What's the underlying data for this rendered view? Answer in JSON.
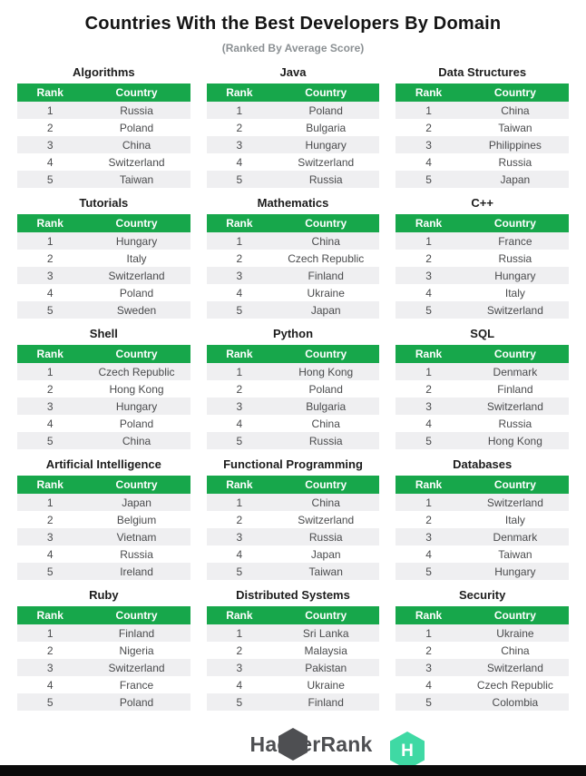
{
  "title": "Countries With the Best Developers By Domain",
  "subtitle": "(Ranked By Average Score)",
  "columns": {
    "rank": "Rank",
    "country": "Country"
  },
  "chart_data": [
    {
      "type": "table",
      "title": "Algorithms",
      "columns": [
        "Rank",
        "Country"
      ],
      "rows": [
        [
          "1",
          "Russia"
        ],
        [
          "2",
          "Poland"
        ],
        [
          "3",
          "China"
        ],
        [
          "4",
          "Switzerland"
        ],
        [
          "5",
          "Taiwan"
        ]
      ]
    },
    {
      "type": "table",
      "title": "Java",
      "columns": [
        "Rank",
        "Country"
      ],
      "rows": [
        [
          "1",
          "Poland"
        ],
        [
          "2",
          "Bulgaria"
        ],
        [
          "3",
          "Hungary"
        ],
        [
          "4",
          "Switzerland"
        ],
        [
          "5",
          "Russia"
        ]
      ]
    },
    {
      "type": "table",
      "title": "Data Structures",
      "columns": [
        "Rank",
        "Country"
      ],
      "rows": [
        [
          "1",
          "China"
        ],
        [
          "2",
          "Taiwan"
        ],
        [
          "3",
          "Philippines"
        ],
        [
          "4",
          "Russia"
        ],
        [
          "5",
          "Japan"
        ]
      ]
    },
    {
      "type": "table",
      "title": "Tutorials",
      "columns": [
        "Rank",
        "Country"
      ],
      "rows": [
        [
          "1",
          "Hungary"
        ],
        [
          "2",
          "Italy"
        ],
        [
          "3",
          "Switzerland"
        ],
        [
          "4",
          "Poland"
        ],
        [
          "5",
          "Sweden"
        ]
      ]
    },
    {
      "type": "table",
      "title": "Mathematics",
      "columns": [
        "Rank",
        "Country"
      ],
      "rows": [
        [
          "1",
          "China"
        ],
        [
          "2",
          "Czech Republic"
        ],
        [
          "3",
          "Finland"
        ],
        [
          "4",
          "Ukraine"
        ],
        [
          "5",
          "Japan"
        ]
      ]
    },
    {
      "type": "table",
      "title": "C++",
      "columns": [
        "Rank",
        "Country"
      ],
      "rows": [
        [
          "1",
          "France"
        ],
        [
          "2",
          "Russia"
        ],
        [
          "3",
          "Hungary"
        ],
        [
          "4",
          "Italy"
        ],
        [
          "5",
          "Switzerland"
        ]
      ]
    },
    {
      "type": "table",
      "title": "Shell",
      "columns": [
        "Rank",
        "Country"
      ],
      "rows": [
        [
          "1",
          "Czech Republic"
        ],
        [
          "2",
          "Hong Kong"
        ],
        [
          "3",
          "Hungary"
        ],
        [
          "4",
          "Poland"
        ],
        [
          "5",
          "China"
        ]
      ]
    },
    {
      "type": "table",
      "title": "Python",
      "columns": [
        "Rank",
        "Country"
      ],
      "rows": [
        [
          "1",
          "Hong Kong"
        ],
        [
          "2",
          "Poland"
        ],
        [
          "3",
          "Bulgaria"
        ],
        [
          "4",
          "China"
        ],
        [
          "5",
          "Russia"
        ]
      ]
    },
    {
      "type": "table",
      "title": "SQL",
      "columns": [
        "Rank",
        "Country"
      ],
      "rows": [
        [
          "1",
          "Denmark"
        ],
        [
          "2",
          "Finland"
        ],
        [
          "3",
          "Switzerland"
        ],
        [
          "4",
          "Russia"
        ],
        [
          "5",
          "Hong Kong"
        ]
      ]
    },
    {
      "type": "table",
      "title": "Artificial Intelligence",
      "columns": [
        "Rank",
        "Country"
      ],
      "rows": [
        [
          "1",
          "Japan"
        ],
        [
          "2",
          "Belgium"
        ],
        [
          "3",
          "Vietnam"
        ],
        [
          "4",
          "Russia"
        ],
        [
          "5",
          "Ireland"
        ]
      ]
    },
    {
      "type": "table",
      "title": "Functional Programming",
      "columns": [
        "Rank",
        "Country"
      ],
      "rows": [
        [
          "1",
          "China"
        ],
        [
          "2",
          "Switzerland"
        ],
        [
          "3",
          "Russia"
        ],
        [
          "4",
          "Japan"
        ],
        [
          "5",
          "Taiwan"
        ]
      ]
    },
    {
      "type": "table",
      "title": "Databases",
      "columns": [
        "Rank",
        "Country"
      ],
      "rows": [
        [
          "1",
          "Switzerland"
        ],
        [
          "2",
          "Italy"
        ],
        [
          "3",
          "Denmark"
        ],
        [
          "4",
          "Taiwan"
        ],
        [
          "5",
          "Hungary"
        ]
      ]
    },
    {
      "type": "table",
      "title": "Ruby",
      "columns": [
        "Rank",
        "Country"
      ],
      "rows": [
        [
          "1",
          "Finland"
        ],
        [
          "2",
          "Nigeria"
        ],
        [
          "3",
          "Switzerland"
        ],
        [
          "4",
          "France"
        ],
        [
          "5",
          "Poland"
        ]
      ]
    },
    {
      "type": "table",
      "title": "Distributed Systems",
      "columns": [
        "Rank",
        "Country"
      ],
      "rows": [
        [
          "1",
          "Sri Lanka"
        ],
        [
          "2",
          "Malaysia"
        ],
        [
          "3",
          "Pakistan"
        ],
        [
          "4",
          "Ukraine"
        ],
        [
          "5",
          "Finland"
        ]
      ]
    },
    {
      "type": "table",
      "title": "Security",
      "columns": [
        "Rank",
        "Country"
      ],
      "rows": [
        [
          "1",
          "Ukraine"
        ],
        [
          "2",
          "China"
        ],
        [
          "3",
          "Switzerland"
        ],
        [
          "4",
          "Czech Republic"
        ],
        [
          "5",
          "Colombia"
        ]
      ]
    }
  ],
  "footer": {
    "brand": "HackerRank",
    "logo_letter": "H"
  },
  "colors": {
    "header_green": "#17a74b",
    "row_stripe": "#efeff1",
    "body_text": "#4a4b4d",
    "title_text": "#151515",
    "subtitle_text": "#8b9093",
    "logo_dark": "#4e4f52",
    "logo_mint": "#3fd9a4",
    "footer_bar": "#0b0b0b"
  }
}
